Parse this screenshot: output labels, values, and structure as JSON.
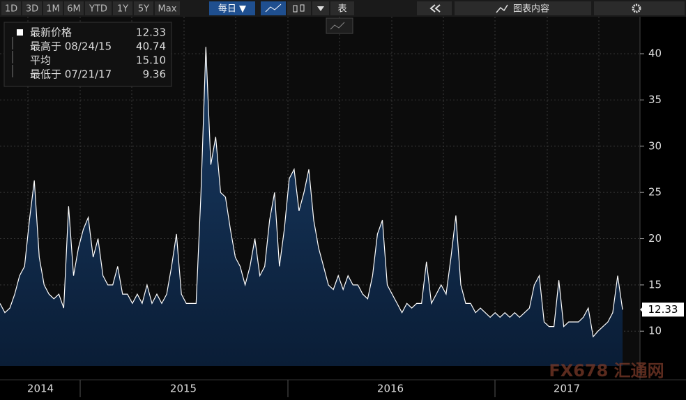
{
  "toolbar": {
    "ranges": [
      "1D",
      "3D",
      "1M",
      "6M",
      "YTD",
      "1Y",
      "5Y",
      "Max"
    ],
    "frequency": "每日 ▼",
    "table": "表",
    "chart_content": "图表内容"
  },
  "legend": [
    {
      "label": "最新价格",
      "value": "12.33"
    },
    {
      "label": "最高于 08/24/15",
      "value": "40.74"
    },
    {
      "label": "平均",
      "value": "15.10"
    },
    {
      "label": "最低于 07/21/17",
      "value": "9.36"
    }
  ],
  "last_value_label": "12.33",
  "watermark": "FX678 汇通网",
  "chart_data": {
    "type": "area",
    "x_axis_labels": [
      "2014",
      "2015",
      "2016",
      "2017"
    ],
    "values": [
      13,
      12,
      12.5,
      14,
      16,
      17,
      22,
      26.3,
      18,
      15,
      14,
      13.5,
      14,
      12.5,
      23.5,
      16,
      19,
      21,
      22.3,
      18,
      20,
      16,
      15,
      15,
      17,
      14,
      14,
      13,
      14,
      13,
      15,
      13,
      14,
      13,
      14,
      17,
      20.5,
      14,
      13,
      13,
      13,
      25,
      40.74,
      28,
      31,
      25,
      24.5,
      21,
      18,
      17,
      15,
      17,
      20,
      16,
      17,
      22,
      25,
      17,
      21,
      26.5,
      27.5,
      23,
      25,
      27.5,
      22,
      19,
      17,
      15,
      14.5,
      16,
      14.5,
      16,
      15,
      15,
      14,
      13.5,
      16,
      20.5,
      22,
      15,
      14,
      13,
      12,
      13,
      12.5,
      13,
      13,
      17.5,
      13,
      14,
      15,
      14,
      18,
      22.5,
      15,
      13,
      13,
      12,
      12.5,
      12,
      11.5,
      12,
      11.5,
      12,
      11.5,
      12,
      11.5,
      12,
      12.5,
      15,
      16,
      11,
      10.5,
      10.5,
      15.5,
      10.5,
      11,
      11,
      11,
      11.5,
      12.5,
      9.4,
      10,
      10.5,
      11,
      12,
      16,
      12.33
    ],
    "color": "#ffffff",
    "fill": "#0f2c4f",
    "ylim": [
      6.25,
      44
    ],
    "yticks": [
      10,
      15,
      20,
      25,
      30,
      35,
      40
    ],
    "grid": true
  }
}
